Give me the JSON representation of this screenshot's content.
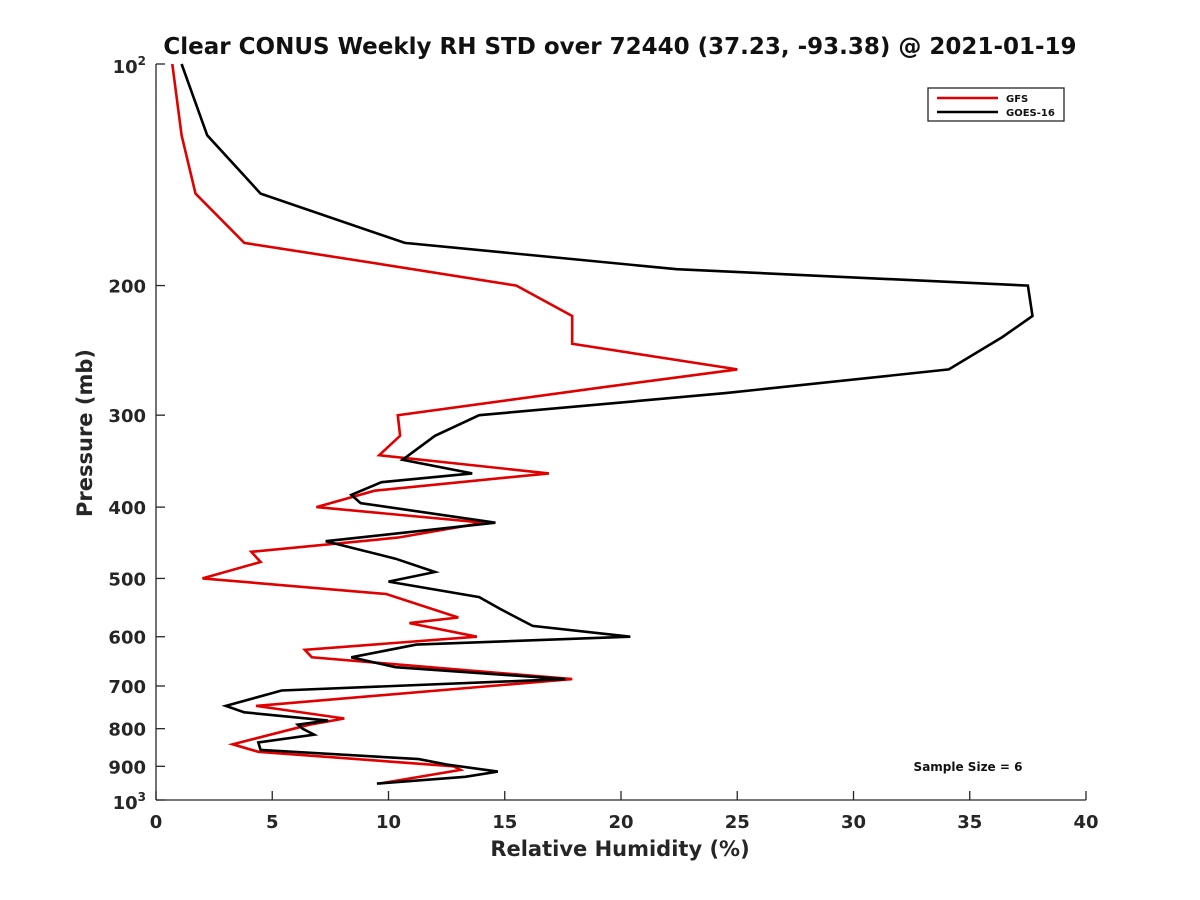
{
  "chart_data": {
    "type": "line",
    "title": "Clear CONUS Weekly RH STD over 72440 (37.23, -93.38) @ 2021-01-19",
    "xlabel": "Relative Humidity (%)",
    "ylabel": "Pressure (mb)",
    "xlim": [
      0,
      40
    ],
    "ylim": [
      100,
      1000
    ],
    "y_scale": "log",
    "y_reversed": true,
    "x_ticks": [
      "0",
      "5",
      "10",
      "15",
      "20",
      "25",
      "30",
      "35",
      "40"
    ],
    "y_ticks": [
      {
        "value": 100,
        "base": "10",
        "exp": "2"
      },
      {
        "value": 200,
        "label": "200"
      },
      {
        "value": 300,
        "label": "300"
      },
      {
        "value": 400,
        "label": "400"
      },
      {
        "value": 500,
        "label": "500"
      },
      {
        "value": 600,
        "label": "600"
      },
      {
        "value": 700,
        "label": "700"
      },
      {
        "value": 800,
        "label": "800"
      },
      {
        "value": 900,
        "label": "900"
      },
      {
        "value": 1000,
        "base": "10",
        "exp": "3"
      }
    ],
    "legend_position": "top-right",
    "annotation": "Sample Size = 6",
    "series": [
      {
        "name": "GFS",
        "color": "#e00000",
        "points": [
          [
            0.7,
            100
          ],
          [
            1.1,
            125
          ],
          [
            1.7,
            150
          ],
          [
            3.8,
            175
          ],
          [
            8.7,
            185
          ],
          [
            15.5,
            200
          ],
          [
            17.9,
            220
          ],
          [
            17.9,
            240
          ],
          [
            25.0,
            260
          ],
          [
            19.2,
            275
          ],
          [
            10.4,
            300
          ],
          [
            10.5,
            320
          ],
          [
            9.6,
            340
          ],
          [
            16.9,
            360
          ],
          [
            9.4,
            380
          ],
          [
            6.9,
            400
          ],
          [
            14.1,
            420
          ],
          [
            10.4,
            440
          ],
          [
            4.1,
            460
          ],
          [
            4.5,
            475
          ],
          [
            2.0,
            500
          ],
          [
            9.9,
            525
          ],
          [
            13.0,
            565
          ],
          [
            10.9,
            575
          ],
          [
            13.8,
            600
          ],
          [
            6.4,
            625
          ],
          [
            6.7,
            640
          ],
          [
            17.9,
            685
          ],
          [
            14.4,
            700
          ],
          [
            4.3,
            745
          ],
          [
            8.1,
            775
          ],
          [
            6.6,
            790
          ],
          [
            3.3,
            840
          ],
          [
            4.4,
            860
          ],
          [
            12.8,
            900
          ],
          [
            13.1,
            910
          ],
          [
            9.6,
            950
          ]
        ]
      },
      {
        "name": "GOES-16",
        "color": "#000000",
        "points": [
          [
            1.1,
            100
          ],
          [
            2.2,
            125
          ],
          [
            4.5,
            150
          ],
          [
            10.7,
            175
          ],
          [
            22.4,
            190
          ],
          [
            37.5,
            200
          ],
          [
            37.7,
            220
          ],
          [
            36.4,
            235
          ],
          [
            34.1,
            260
          ],
          [
            24.5,
            280
          ],
          [
            13.9,
            300
          ],
          [
            12.0,
            320
          ],
          [
            10.6,
            345
          ],
          [
            13.6,
            360
          ],
          [
            9.7,
            370
          ],
          [
            8.4,
            385
          ],
          [
            8.8,
            395
          ],
          [
            14.6,
            420
          ],
          [
            7.3,
            445
          ],
          [
            10.3,
            470
          ],
          [
            12.0,
            490
          ],
          [
            10.0,
            505
          ],
          [
            13.9,
            530
          ],
          [
            14.8,
            550
          ],
          [
            16.2,
            580
          ],
          [
            20.4,
            600
          ],
          [
            11.2,
            615
          ],
          [
            8.4,
            640
          ],
          [
            10.3,
            660
          ],
          [
            17.6,
            685
          ],
          [
            5.4,
            710
          ],
          [
            3.0,
            745
          ],
          [
            3.8,
            760
          ],
          [
            7.4,
            780
          ],
          [
            6.1,
            790
          ],
          [
            6.3,
            800
          ],
          [
            6.8,
            815
          ],
          [
            4.4,
            835
          ],
          [
            4.5,
            855
          ],
          [
            11.3,
            880
          ],
          [
            12.5,
            895
          ],
          [
            14.7,
            915
          ],
          [
            13.3,
            930
          ],
          [
            9.5,
            950
          ]
        ]
      }
    ]
  }
}
